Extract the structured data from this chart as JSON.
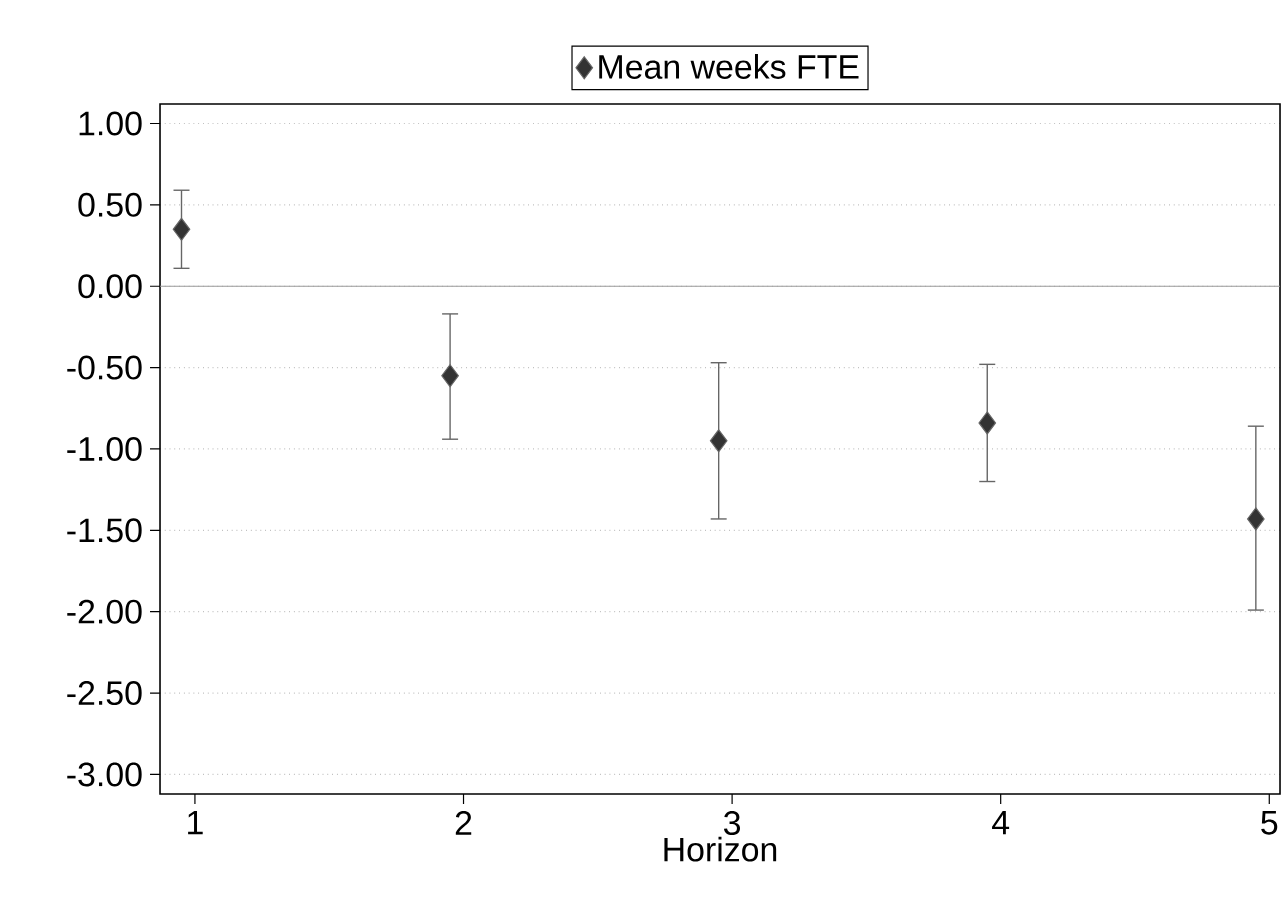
{
  "chart_data": {
    "type": "scatter",
    "xlabel": "Horizon",
    "x": [
      0.95,
      1.95,
      2.95,
      3.95,
      4.95
    ],
    "series": [
      {
        "name": "Mean weeks FTE",
        "color": "#333333",
        "values": [
          0.35,
          -0.55,
          -0.95,
          -0.84,
          -1.43
        ],
        "errors": [
          [
            0.11,
            0.59
          ],
          [
            -0.94,
            -0.17
          ],
          [
            -1.43,
            -0.47
          ],
          [
            -1.2,
            -0.48
          ],
          [
            -1.99,
            -0.86
          ]
        ]
      }
    ],
    "xlim": [
      0.87,
      5.04
    ],
    "ylim": [
      -3.12,
      1.12
    ],
    "xticks": [
      1,
      2,
      3,
      4,
      5
    ],
    "yticks": [
      {
        "value": 1,
        "label": "1.00"
      },
      {
        "value": 0.5,
        "label": "0.50"
      },
      {
        "value": 0,
        "label": "0.00"
      },
      {
        "value": -0.5,
        "label": "-0.50"
      },
      {
        "value": -1,
        "label": "-1.00"
      },
      {
        "value": -1.5,
        "label": "-1.50"
      },
      {
        "value": -2,
        "label": "-2.00"
      },
      {
        "value": -2.5,
        "label": "-2.50"
      },
      {
        "value": -3,
        "label": "-3.00"
      }
    ],
    "ref_lines": [
      {
        "axis": "y",
        "value": 0,
        "color": "#999999"
      }
    ],
    "grid": "y",
    "legend": "top",
    "marker": "diamond"
  }
}
